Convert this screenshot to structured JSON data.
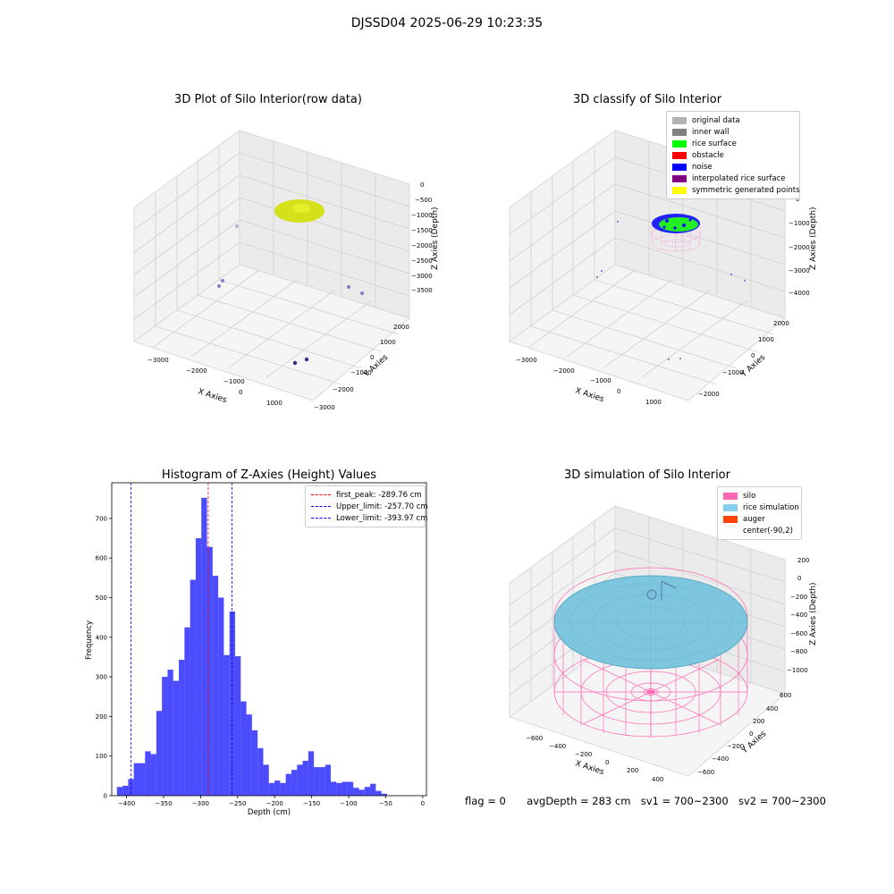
{
  "figure": {
    "suptitle": "DJSSD04 2025-06-29 10:23:35"
  },
  "panels": {
    "p1": {
      "title": "3D Plot of Silo Interior(row data)",
      "xlabel": "X Axies",
      "ylabel": "Y Axies",
      "zlabel": "Z Axies (Depth)",
      "xticks": [
        "−3000",
        "−2000",
        "−1000",
        "0",
        "1000"
      ],
      "yticks": [
        "−3000",
        "−2000",
        "−1000",
        "0",
        "1000",
        "2000"
      ],
      "zticks": [
        "0",
        "−500",
        "−1000",
        "−1500",
        "−2000",
        "−2500",
        "−3000",
        "−3500"
      ]
    },
    "p2": {
      "title": "3D classify of Silo Interior",
      "xlabel": "X Axies",
      "ylabel": "Y Axies",
      "zlabel": "Z Axies (Depth)",
      "xticks": [
        "−3000",
        "−2000",
        "−1000",
        "0",
        "1000"
      ],
      "yticks": [
        "−2000",
        "−1000",
        "0",
        "1000",
        "2000"
      ],
      "zticks": [
        "0",
        "−1000",
        "−2000",
        "−3000",
        "−4000"
      ],
      "legend": [
        {
          "label": "original data",
          "color": "#b3b3b3"
        },
        {
          "label": "inner wall",
          "color": "#808080"
        },
        {
          "label": "rice surface",
          "color": "#00ff00"
        },
        {
          "label": "obstacle",
          "color": "#ff0000"
        },
        {
          "label": "noise",
          "color": "#0000ff"
        },
        {
          "label": "interpolated rice surface",
          "color": "#800080"
        },
        {
          "label": "symmetric generated points",
          "color": "#ffff00"
        }
      ]
    },
    "p4": {
      "title": "3D simulation of Silo Interior",
      "xlabel": "X Axies",
      "ylabel": "Y Axies",
      "zlabel": "Z Axies (Depth)",
      "xticks": [
        "−600",
        "−400",
        "−200",
        "0",
        "200",
        "400"
      ],
      "yticks": [
        "−600",
        "−400",
        "−200",
        "0",
        "200",
        "400",
        "600"
      ],
      "zticks": [
        "200",
        "0",
        "−200",
        "−400",
        "−600",
        "−800",
        "−1000"
      ],
      "legend": [
        {
          "label": "silo",
          "color": "#ff69b4"
        },
        {
          "label": "rice simulation",
          "color": "#87ceeb"
        },
        {
          "label": "auger",
          "color": "#ff4500"
        },
        {
          "label": "center(-90,2)",
          "color": ""
        }
      ]
    }
  },
  "chart_data": {
    "type": "bar",
    "title": "Histogram of Z-Axies (Height) Values",
    "xlabel": "Depth (cm)",
    "ylabel": "Frequency",
    "xlim": [
      -420,
      5
    ],
    "ylim": [
      0,
      790
    ],
    "xticks": [
      -400,
      -350,
      -300,
      -250,
      -200,
      -150,
      -100,
      -50,
      0
    ],
    "yticks": [
      0,
      100,
      200,
      300,
      400,
      500,
      600,
      700
    ],
    "bar_color": "#0000ff",
    "bins": [
      {
        "x0": -413,
        "x1": -405.4,
        "count": 22
      },
      {
        "x0": -405.4,
        "x1": -397.8,
        "count": 25
      },
      {
        "x0": -397.8,
        "x1": -390.2,
        "count": 42
      },
      {
        "x0": -390.2,
        "x1": -382.6,
        "count": 82
      },
      {
        "x0": -382.6,
        "x1": -375.0,
        "count": 82
      },
      {
        "x0": -375.0,
        "x1": -367.4,
        "count": 112
      },
      {
        "x0": -367.4,
        "x1": -359.8,
        "count": 105
      },
      {
        "x0": -359.8,
        "x1": -352.2,
        "count": 214
      },
      {
        "x0": -352.2,
        "x1": -344.6,
        "count": 300
      },
      {
        "x0": -344.6,
        "x1": -337.0,
        "count": 318
      },
      {
        "x0": -337.0,
        "x1": -329.4,
        "count": 290
      },
      {
        "x0": -329.4,
        "x1": -321.8,
        "count": 343
      },
      {
        "x0": -321.8,
        "x1": -314.2,
        "count": 425
      },
      {
        "x0": -314.2,
        "x1": -306.6,
        "count": 545
      },
      {
        "x0": -306.6,
        "x1": -299.0,
        "count": 650
      },
      {
        "x0": -299.0,
        "x1": -291.4,
        "count": 752
      },
      {
        "x0": -291.4,
        "x1": -283.8,
        "count": 628
      },
      {
        "x0": -283.8,
        "x1": -276.2,
        "count": 555
      },
      {
        "x0": -276.2,
        "x1": -268.6,
        "count": 500
      },
      {
        "x0": -268.6,
        "x1": -261.0,
        "count": 355
      },
      {
        "x0": -261.0,
        "x1": -253.4,
        "count": 465
      },
      {
        "x0": -253.4,
        "x1": -245.8,
        "count": 352
      },
      {
        "x0": -245.8,
        "x1": -238.2,
        "count": 238
      },
      {
        "x0": -238.2,
        "x1": -230.6,
        "count": 205
      },
      {
        "x0": -230.6,
        "x1": -223.0,
        "count": 165
      },
      {
        "x0": -223.0,
        "x1": -215.4,
        "count": 120
      },
      {
        "x0": -215.4,
        "x1": -207.8,
        "count": 78
      },
      {
        "x0": -207.8,
        "x1": -200.2,
        "count": 32
      },
      {
        "x0": -200.2,
        "x1": -192.6,
        "count": 38
      },
      {
        "x0": -192.6,
        "x1": -185.0,
        "count": 32
      },
      {
        "x0": -185.0,
        "x1": -177.4,
        "count": 55
      },
      {
        "x0": -177.4,
        "x1": -169.8,
        "count": 65
      },
      {
        "x0": -169.8,
        "x1": -162.2,
        "count": 78
      },
      {
        "x0": -162.2,
        "x1": -154.6,
        "count": 88
      },
      {
        "x0": -154.6,
        "x1": -147.0,
        "count": 112
      },
      {
        "x0": -147.0,
        "x1": -139.4,
        "count": 72
      },
      {
        "x0": -139.4,
        "x1": -131.8,
        "count": 72
      },
      {
        "x0": -131.8,
        "x1": -124.2,
        "count": 78
      },
      {
        "x0": -124.2,
        "x1": -116.6,
        "count": 35
      },
      {
        "x0": -116.6,
        "x1": -109.0,
        "count": 32
      },
      {
        "x0": -109.0,
        "x1": -101.4,
        "count": 35
      },
      {
        "x0": -101.4,
        "x1": -93.8,
        "count": 35
      },
      {
        "x0": -93.8,
        "x1": -86.2,
        "count": 20
      },
      {
        "x0": -86.2,
        "x1": -78.6,
        "count": 15
      },
      {
        "x0": -78.6,
        "x1": -71.0,
        "count": 22
      },
      {
        "x0": -71.0,
        "x1": -63.4,
        "count": 30
      },
      {
        "x0": -63.4,
        "x1": -55.8,
        "count": 12
      },
      {
        "x0": -55.8,
        "x1": -48.2,
        "count": 5
      }
    ],
    "vlines": [
      {
        "label": "first_peak: -289.76 cm",
        "x": -289.76,
        "color": "#ff0000"
      },
      {
        "label": "Upper_limit: -257.70 cm",
        "x": -257.7,
        "color": "#0000ff"
      },
      {
        "label": "Lower_limit: -393.97 cm",
        "x": -393.97,
        "color": "#0000ff"
      }
    ]
  },
  "footer": {
    "flag": "flag = 0",
    "avg": "avgDepth = 283 cm",
    "sv1": "sv1 = 700~2300",
    "sv2": "sv2 = 700~2300"
  }
}
